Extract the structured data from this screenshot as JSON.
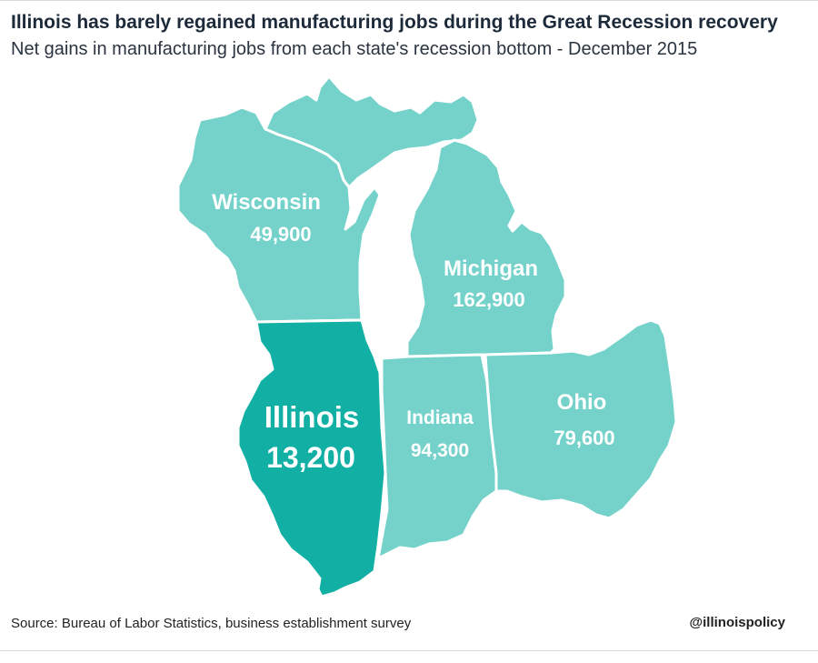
{
  "title": "Illinois has barely regained manufacturing jobs during the Great Recession recovery",
  "subtitle": "Net gains in manufacturing jobs from each state's recession bottom - December 2015",
  "states": [
    {
      "name": "Wisconsin",
      "value": "49,900",
      "color": "#74d2ca"
    },
    {
      "name": "Michigan",
      "value": "162,900",
      "color": "#74d2ca"
    },
    {
      "name": "Illinois",
      "value": "13,200",
      "color": "#12b0a4"
    },
    {
      "name": "Indiana",
      "value": "94,300",
      "color": "#74d2ca"
    },
    {
      "name": "Ohio",
      "value": "79,600",
      "color": "#74d2ca"
    }
  ],
  "source": "Source: Bureau of Labor Statistics, business establishment survey",
  "handle": "@illinoispolicy"
}
